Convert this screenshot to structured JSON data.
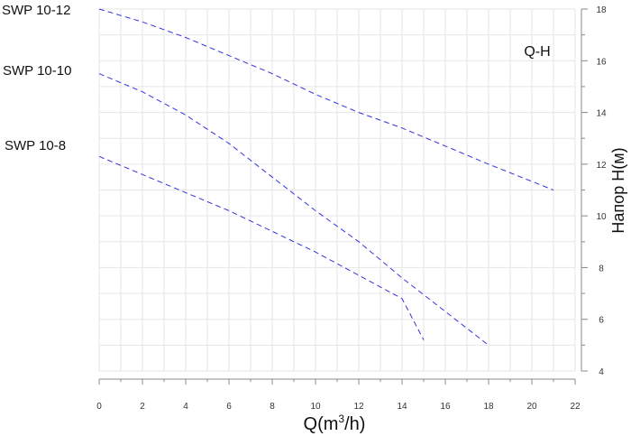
{
  "chart_data": {
    "type": "line",
    "annotation": "Q-H",
    "xlabel_main": "Q(m",
    "xlabel_sup": "3",
    "xlabel_end": "/h)",
    "ylabel": "Напор H(м)",
    "xlim": [
      0,
      22
    ],
    "ylim": [
      4,
      18
    ],
    "x_ticks": [
      0,
      2,
      4,
      6,
      8,
      10,
      12,
      14,
      16,
      18,
      20,
      22
    ],
    "y_ticks": [
      4,
      6,
      8,
      10,
      12,
      14,
      16,
      18
    ],
    "x_ticks_text": [
      "0",
      "2",
      "4",
      "6",
      "8",
      "10",
      "12",
      "14",
      "16",
      "18",
      "20",
      "22"
    ],
    "y_ticks_text": [
      "4",
      "6",
      "8",
      "10",
      "12",
      "14",
      "16",
      "18"
    ],
    "grid": true,
    "line_color": "#3333dd",
    "series": [
      {
        "name": "SWP 10-12",
        "x": [
          0,
          2,
          4,
          6,
          8,
          10,
          12,
          14,
          16,
          18,
          21
        ],
        "y": [
          18.0,
          17.5,
          16.9,
          16.2,
          15.5,
          14.7,
          14.0,
          13.4,
          12.7,
          12.0,
          11.0
        ]
      },
      {
        "name": "SWP 10-10",
        "x": [
          0,
          2,
          4,
          6,
          8,
          10,
          12,
          14,
          16,
          18
        ],
        "y": [
          15.5,
          14.8,
          13.9,
          12.8,
          11.5,
          10.2,
          9.0,
          7.6,
          6.3,
          5.0
        ]
      },
      {
        "name": "SWP 10-8",
        "x": [
          0,
          2,
          4,
          6,
          8,
          10,
          12,
          14,
          15
        ],
        "y": [
          12.3,
          11.6,
          10.9,
          10.2,
          9.4,
          8.6,
          7.7,
          6.8,
          5.2
        ]
      }
    ]
  }
}
